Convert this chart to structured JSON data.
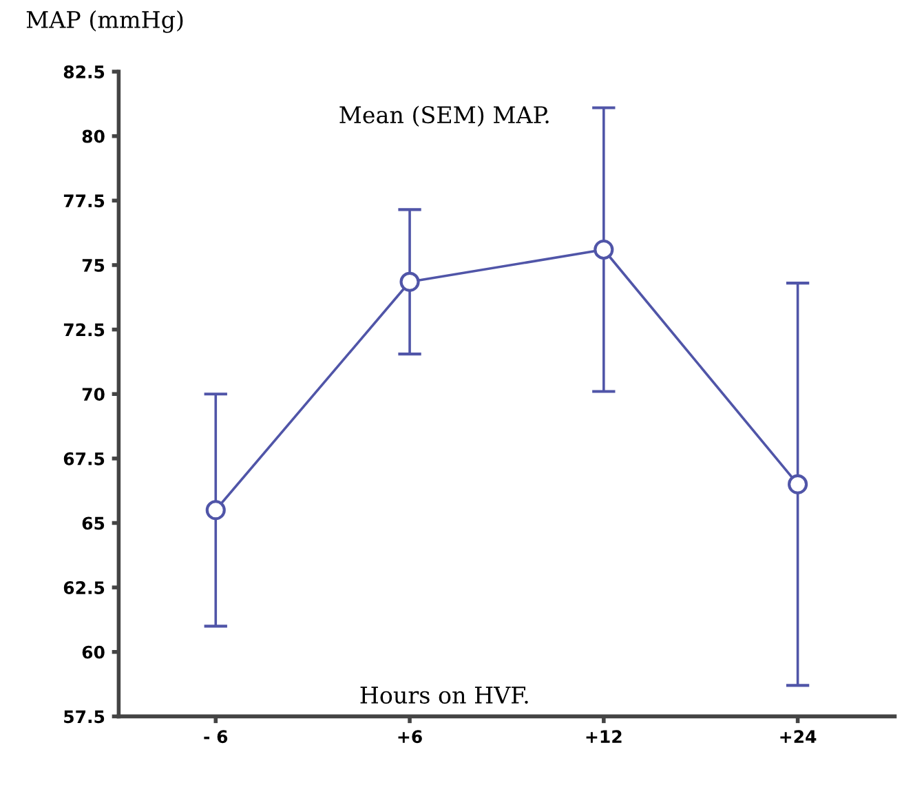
{
  "chart_data": {
    "type": "line",
    "ylabel": "MAP (mmHg)",
    "annotations": [
      "Mean (SEM) MAP.",
      "Hours on HVF."
    ],
    "categories": [
      "- 6",
      "+6",
      "+12",
      "+24"
    ],
    "series": [
      {
        "color": "#5055a8",
        "values": [
          65.5,
          74.35,
          75.6,
          66.5
        ],
        "errors": [
          4.5,
          2.8,
          5.5,
          7.8
        ]
      }
    ],
    "ylim": [
      57.5,
      82.5
    ],
    "yticks": [
      82.5,
      80,
      77.5,
      75,
      72.5,
      70,
      67.5,
      65,
      62.5,
      60,
      57.5
    ],
    "marker": "circle",
    "grid": false,
    "legend": false
  }
}
